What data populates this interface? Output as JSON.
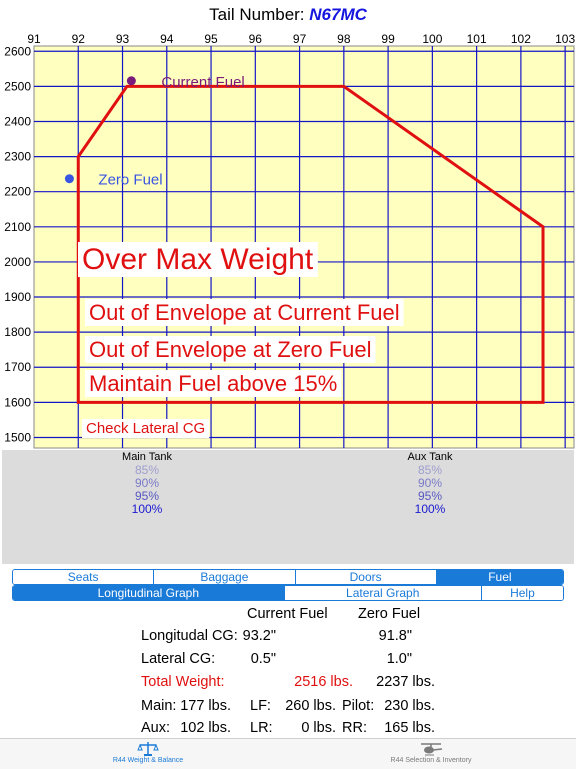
{
  "header": {
    "label": "Tail Number:",
    "value": "N67MC"
  },
  "chart_data": {
    "type": "scatter",
    "x_ticks": [
      "91",
      "92",
      "93",
      "94",
      "95",
      "96",
      "97",
      "98",
      "99",
      "100",
      "101",
      "102",
      "103"
    ],
    "y_ticks": [
      "2600",
      "2500",
      "2400",
      "2300",
      "2200",
      "2100",
      "2000",
      "1900",
      "1800",
      "1700",
      "1600",
      "1500"
    ],
    "xlim": [
      91,
      103.2
    ],
    "ylim": [
      1470,
      2615
    ],
    "grid": true,
    "envelope": [
      {
        "x": 92.0,
        "y": 1600
      },
      {
        "x": 92.0,
        "y": 2300
      },
      {
        "x": 93.1,
        "y": 2500
      },
      {
        "x": 98.0,
        "y": 2500
      },
      {
        "x": 102.5,
        "y": 2100
      },
      {
        "x": 102.5,
        "y": 1600
      }
    ],
    "points": [
      {
        "label": "Current Fuel",
        "x": 93.2,
        "y": 2516,
        "color": "#7a1a7a"
      },
      {
        "label": "Zero Fuel",
        "x": 91.8,
        "y": 2237,
        "color": "#3a55e0"
      }
    ],
    "background_color": "#ffffc0",
    "grid_color": "#1515c8",
    "envelope_color": "#e01010"
  },
  "warnings": {
    "title": "Over Max Weight",
    "lines": [
      "Out of Envelope at Current Fuel",
      "Out of Envelope at Zero Fuel",
      "Maintain Fuel above 15%"
    ],
    "note": "Check Lateral CG"
  },
  "fuel": {
    "main": {
      "title": "Main Tank",
      "options": [
        "85%",
        "90%",
        "95%",
        "100%"
      ]
    },
    "aux": {
      "title": "Aux Tank",
      "options": [
        "85%",
        "90%",
        "95%",
        "100%"
      ]
    }
  },
  "tabs_top": [
    {
      "label": "Seats",
      "active": false
    },
    {
      "label": "Baggage",
      "active": false
    },
    {
      "label": "Doors",
      "active": false
    },
    {
      "label": "Fuel",
      "active": true
    }
  ],
  "tabs_bottom": [
    {
      "label": "Longitudinal Graph",
      "active": true
    },
    {
      "label": "Lateral Graph",
      "active": false
    },
    {
      "label": "Help",
      "active": false
    }
  ],
  "summary": {
    "col_current": "Current Fuel",
    "col_zero": "Zero Fuel",
    "rows": [
      {
        "label": "Longitudal CG:",
        "current": "93.2\"",
        "zero": "91.8\"",
        "warn": false
      },
      {
        "label": "Lateral CG:",
        "current": "0.5\"",
        "zero": "1.0\"",
        "warn": false
      },
      {
        "label": "Total Weight:",
        "current": "2516 lbs.",
        "zero": "2237 lbs.",
        "warn": true
      }
    ],
    "loads": [
      [
        "Main:",
        "177 lbs.",
        "LF:",
        "260 lbs.",
        "Pilot:",
        "230 lbs."
      ],
      [
        "Aux:",
        "102 lbs.",
        "LR:",
        "0 lbs.",
        "RR:",
        "165 lbs."
      ]
    ]
  },
  "tabbar": {
    "left": {
      "label": "R44 Weight & Balance",
      "icon": "scale-icon"
    },
    "right": {
      "label": "R44 Selection & Inventory",
      "icon": "helicopter-icon"
    }
  }
}
